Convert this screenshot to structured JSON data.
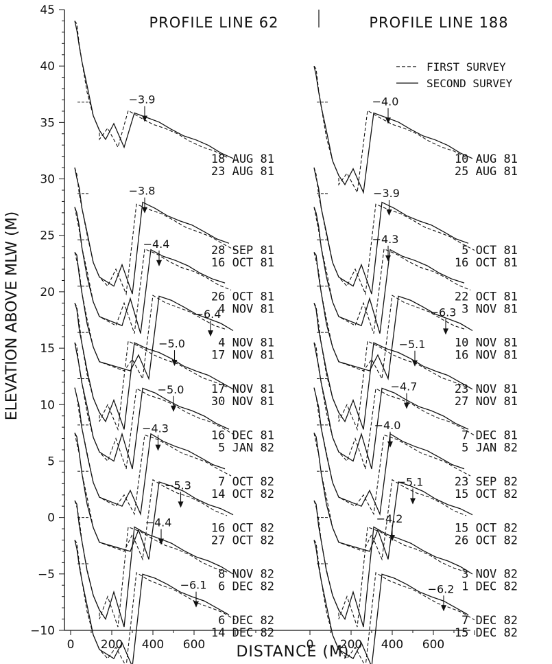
{
  "chart_data": {
    "type": "line",
    "ylabel": "ELEVATION ABOVE MLW (M)",
    "xlabel": "DISTANCE (M)",
    "ylim": [
      -10,
      45
    ],
    "yticks": [
      -10,
      -5,
      0,
      5,
      10,
      15,
      20,
      25,
      30,
      35,
      40,
      45
    ],
    "ytick_labels": [
      "−10",
      "−5",
      "0",
      "5",
      "10",
      "15",
      "20",
      "25",
      "30",
      "35",
      "40",
      "45"
    ],
    "xticks": [
      0,
      200,
      400,
      600
    ],
    "xtick_labels": [
      "0",
      "200",
      "400",
      "600"
    ],
    "legend": {
      "placement": "top-right",
      "entries": [
        {
          "label": "FIRST SURVEY",
          "style": "dashed"
        },
        {
          "label": "SECOND SURVEY",
          "style": "solid"
        }
      ]
    },
    "panels": [
      {
        "title": "PROFILE LINE 62",
        "xlim": [
          0,
          800
        ],
        "offsets": [
          36.8,
          28.7,
          24.6,
          20.5,
          16.4,
          12.3,
          8.2,
          4.1,
          0.0,
          -4.1
        ],
        "tops": [
          44,
          31,
          27.5,
          23.5,
          19,
          15.5,
          11.5,
          7.5,
          1.5,
          -2
        ],
        "profiles": [
          {
            "first_survey": "18 AUG 81",
            "second_survey": "23 AUG 81",
            "marker_value": "−3.9",
            "marker_x": 360
          },
          {
            "first_survey": "28 SEP 81",
            "second_survey": "16 OCT 81",
            "marker_value": "−3.8",
            "marker_x": 360
          },
          {
            "first_survey": "26 OCT 81",
            "second_survey": "4 NOV 81",
            "marker_value": "−4.4",
            "marker_x": 430
          },
          {
            "first_survey": "4 NOV 81",
            "second_survey": "17 NOV 81",
            "marker_value": "−6.4",
            "marker_x": 680
          },
          {
            "first_survey": "17 NOV 81",
            "second_survey": "30 NOV 81",
            "marker_value": "−5.0",
            "marker_x": 505
          },
          {
            "first_survey": "16 DEC 81",
            "second_survey": "5 JAN 82",
            "marker_value": "−5.0",
            "marker_x": 500
          },
          {
            "first_survey": "7 OCT 82",
            "second_survey": "14 OCT 82",
            "marker_value": "−4.3",
            "marker_x": 425
          },
          {
            "first_survey": "16 OCT 82",
            "second_survey": "27 OCT 82",
            "marker_value": "−5.3",
            "marker_x": 535
          },
          {
            "first_survey": "8 NOV 82",
            "second_survey": "6 DEC 82",
            "marker_value": "−4.4",
            "marker_x": 440
          },
          {
            "first_survey": "6 DEC 82",
            "second_survey": "14 DEC 82",
            "marker_value": "−6.1",
            "marker_x": 610
          }
        ]
      },
      {
        "title": "PROFILE LINE 188",
        "xlim": [
          0,
          800
        ],
        "offsets": [
          36.8,
          28.7,
          24.6,
          20.5,
          16.4,
          12.3,
          8.2,
          4.1,
          0.0,
          -4.1
        ],
        "tops": [
          40,
          31,
          27.5,
          23.5,
          19,
          15.5,
          11.5,
          7.5,
          1.5,
          -2
        ],
        "profiles": [
          {
            "first_survey": "10 AUG 81",
            "second_survey": "25 AUG 81",
            "marker_value": "−4.0",
            "marker_x": 380
          },
          {
            "first_survey": "5 OCT 81",
            "second_survey": "16 OCT 81",
            "marker_value": "−3.9",
            "marker_x": 385
          },
          {
            "first_survey": "22 OCT 81",
            "second_survey": "3 NOV 81",
            "marker_value": "−4.3",
            "marker_x": 380
          },
          {
            "first_survey": "10 NOV 81",
            "second_survey": "16 NOV 81",
            "marker_value": "−6.3",
            "marker_x": 660
          },
          {
            "first_survey": "23 NOV 81",
            "second_survey": "27 NOV 81",
            "marker_value": "−5.1",
            "marker_x": 510
          },
          {
            "first_survey": "7 DEC 81",
            "second_survey": "5 JAN 82",
            "marker_value": "−4.7",
            "marker_x": 470
          },
          {
            "first_survey": "23 SEP 82",
            "second_survey": "15 OCT 82",
            "marker_value": "−4.0",
            "marker_x": 390
          },
          {
            "first_survey": "15 OCT 82",
            "second_survey": "26 OCT 82",
            "marker_value": "−5.1",
            "marker_x": 500
          },
          {
            "first_survey": "3 NOV 82",
            "second_survey": "1 DEC 82",
            "marker_value": "−4.2",
            "marker_x": 400
          },
          {
            "first_survey": "7 DEC 82",
            "second_survey": "15 DEC 82",
            "marker_value": "−6.2",
            "marker_x": 650
          }
        ]
      }
    ]
  }
}
